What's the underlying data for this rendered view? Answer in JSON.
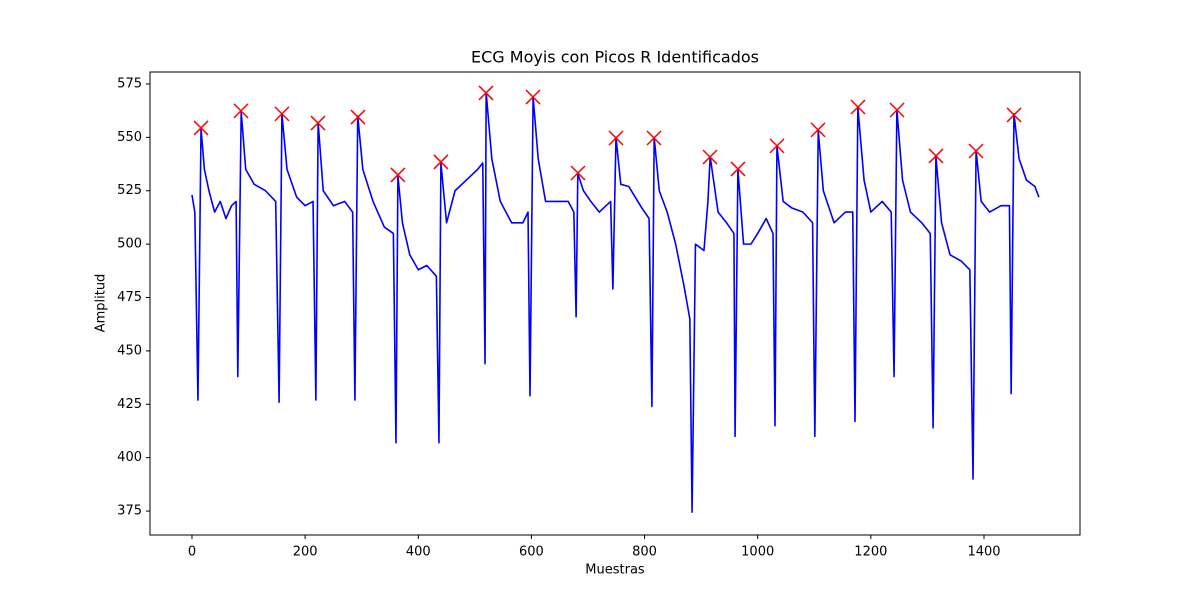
{
  "chart_data": {
    "type": "line",
    "title": "ECG Moyis con Picos R Identificados",
    "x_label": "Muestras",
    "y_label": "Amplitud",
    "xlim": [
      -74.2,
      1569.7
    ],
    "ylim": [
      363.8,
      580.6
    ],
    "xticks": [
      0,
      200,
      400,
      600,
      800,
      1000,
      1200,
      1400
    ],
    "yticks": [
      375,
      400,
      425,
      450,
      475,
      500,
      525,
      550,
      575
    ],
    "series": [
      {
        "type": "line",
        "color": "#0000ff",
        "x": [
          0,
          5,
          10.6,
          16,
          22,
          30,
          40,
          50,
          60,
          70,
          78,
          81,
          87,
          95,
          110,
          130,
          148,
          154,
          159,
          168,
          185,
          200,
          214,
          219,
          223,
          232,
          250,
          270,
          284,
          288,
          293,
          302,
          320,
          340,
          356,
          360.6,
          364,
          372,
          385,
          400,
          415,
          432,
          436.6,
          440,
          450,
          465,
          485,
          505,
          514,
          518,
          520,
          530,
          545,
          565,
          585,
          594,
          597.5,
          603,
          612,
          625,
          645,
          665,
          675,
          679,
          682,
          692,
          705,
          720,
          740,
          744,
          749.5,
          758,
          772,
          795,
          808,
          813,
          817,
          826,
          840,
          855,
          870,
          880,
          884,
          890,
          905,
          912,
          916,
          930,
          945,
          958,
          960,
          965,
          975,
          988,
          1000,
          1015,
          1027,
          1030.6,
          1034,
          1045,
          1060,
          1080,
          1097,
          1101,
          1107,
          1116,
          1135,
          1155,
          1168,
          1172,
          1177,
          1188,
          1200,
          1220,
          1236,
          1241,
          1246,
          1256,
          1270,
          1290,
          1305,
          1310,
          1315,
          1325,
          1340,
          1360,
          1375,
          1380.6,
          1386,
          1395,
          1410,
          1430,
          1445,
          1448,
          1453,
          1462,
          1475,
          1490,
          1497
        ],
        "values": [
          523,
          515,
          427,
          554,
          535,
          525,
          515,
          520,
          512,
          518,
          520,
          438,
          562,
          535,
          528,
          525,
          520,
          426,
          561,
          535,
          522,
          518,
          520,
          427,
          557,
          525,
          518,
          520,
          515,
          427,
          560,
          535,
          520,
          508,
          505,
          407,
          532,
          510,
          495,
          488,
          490,
          485,
          407,
          538,
          510,
          525,
          530,
          535,
          538,
          444,
          571,
          540,
          520,
          510,
          510,
          515,
          429,
          569,
          540,
          520,
          520,
          520,
          515,
          466,
          533,
          525,
          520,
          515,
          520,
          479,
          550,
          528,
          527,
          517,
          512,
          424,
          550,
          525,
          515,
          500,
          480,
          465,
          374.5,
          500,
          497,
          520,
          541,
          515,
          510,
          505,
          410,
          535,
          500,
          500,
          505,
          512,
          505,
          415,
          546,
          520,
          517,
          515,
          510,
          410,
          553,
          525,
          510,
          515,
          515,
          417,
          564,
          530,
          515,
          520,
          515,
          438,
          563,
          530,
          515,
          510,
          505,
          414,
          541,
          510,
          495,
          492,
          488,
          390,
          544,
          520,
          515,
          518,
          518,
          430,
          561,
          540,
          530,
          527,
          522
        ]
      },
      {
        "type": "scatter",
        "marker": "x",
        "color": "#ff0000",
        "x": [
          16,
          86.6,
          159,
          222.7,
          293.4,
          364,
          440,
          519.7,
          602.8,
          682.3,
          749.5,
          816.7,
          915.7,
          965.2,
          1034.1,
          1106.6,
          1177.3,
          1246.3,
          1315.2,
          1385.9,
          1453.1
        ],
        "values": [
          554.4,
          562.4,
          561,
          556.7,
          559.5,
          532.4,
          538.5,
          570.8,
          568.9,
          533.3,
          549.7,
          549.7,
          540.8,
          535.2,
          546,
          553.5,
          564.2,
          562.8,
          541.3,
          543.6,
          560.5
        ]
      }
    ]
  }
}
